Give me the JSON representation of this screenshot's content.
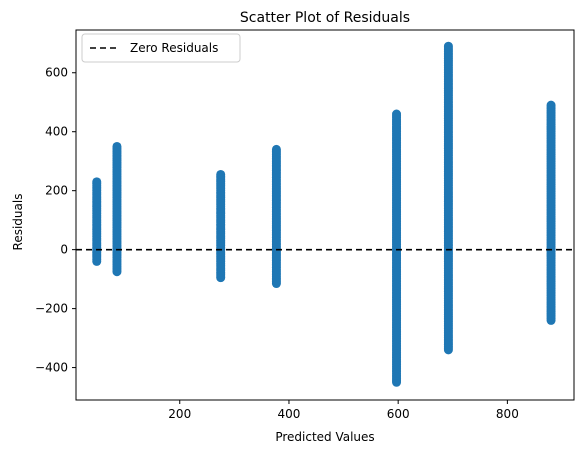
{
  "chart_data": {
    "type": "scatter",
    "title": "Scatter Plot of Residuals",
    "xlabel": "Predicted Values",
    "ylabel": "Residuals",
    "xlim": [
      10,
      922
    ],
    "ylim": [
      -510,
      745
    ],
    "xticks": [
      200,
      400,
      600,
      800
    ],
    "yticks": [
      -400,
      -200,
      0,
      200,
      400,
      600
    ],
    "reference_line": {
      "y": 0,
      "style": "dashed",
      "color": "#000000",
      "label": "Zero Residuals"
    },
    "legend": {
      "position": "top-left",
      "entries": [
        "Zero Residuals"
      ]
    },
    "point_color": "#1f77b4",
    "grid": false,
    "clusters": [
      {
        "x": 48,
        "y_min": -40,
        "y_max": 230
      },
      {
        "x": 85,
        "y_min": -75,
        "y_max": 350
      },
      {
        "x": 275,
        "y_min": -95,
        "y_max": 255
      },
      {
        "x": 377,
        "y_min": -115,
        "y_max": 340
      },
      {
        "x": 597,
        "y_min": -450,
        "y_max": 460
      },
      {
        "x": 692,
        "y_min": -340,
        "y_max": 690
      },
      {
        "x": 880,
        "y_min": -240,
        "y_max": 490
      }
    ]
  }
}
